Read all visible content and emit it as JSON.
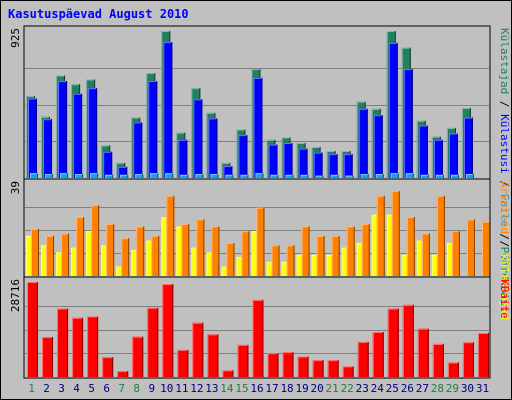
{
  "chart_data": {
    "type": "bar",
    "title": "Kasutuspäevad August 2010",
    "categories": [
      "1",
      "2",
      "3",
      "4",
      "5",
      "6",
      "7",
      "8",
      "9",
      "10",
      "11",
      "12",
      "13",
      "14",
      "15",
      "16",
      "17",
      "18",
      "19",
      "20",
      "21",
      "22",
      "23",
      "24",
      "25",
      "26",
      "27",
      "28",
      "29",
      "30",
      "31"
    ],
    "weekend_days": [
      "1",
      "7",
      "8",
      "14",
      "15",
      "21",
      "22",
      "28",
      "29"
    ],
    "category_colors": {
      "weekday": "#000080",
      "weekend": "#208040"
    },
    "panels": [
      {
        "id": "pages",
        "ymax": 925,
        "ymax_label": "925",
        "legend": [
          {
            "text": "Külastajad",
            "color": "#208060"
          },
          {
            "text": "Külastusi",
            "color": "#0000ff"
          },
          {
            "text": "Faile",
            "color": "#00aaff"
          },
          {
            "text": "Pöördumisi",
            "color": "#208060"
          }
        ],
        "legend_separator": "/",
        "series": [
          {
            "name": "Pöördumisi",
            "color": "#208060",
            "values": [
              515,
              385,
              645,
              590,
              620,
              205,
              95,
              380,
              660,
              925,
              285,
              565,
              410,
              95,
              305,
              685,
              240,
              255,
              220,
              195,
              170,
              170,
              480,
              435,
              925,
              820,
              360,
              260,
              315,
              440,
              0
            ]
          },
          {
            "name": "Faile",
            "color": "#0000ff",
            "values": [
              500,
              370,
              610,
              530,
              565,
              165,
              70,
              350,
              610,
              855,
              240,
              495,
              375,
              75,
              270,
              630,
              210,
              220,
              185,
              160,
              150,
              150,
              435,
              395,
              850,
              685,
              330,
              240,
              280,
              380,
              0
            ]
          },
          {
            "name": "Külastusi",
            "color": "#00aaff",
            "values": [
              30,
              25,
              30,
              25,
              30,
              20,
              20,
              25,
              30,
              30,
              20,
              25,
              25,
              20,
              20,
              30,
              20,
              20,
              20,
              15,
              20,
              15,
              25,
              25,
              30,
              30,
              20,
              20,
              20,
              25,
              0
            ]
          }
        ]
      },
      {
        "id": "visits",
        "ymax": 39,
        "ymax_label": "39",
        "legend": [
          {
            "text": "Arvuteid",
            "color": "#ff8000"
          },
          {
            "text": "Külastajad",
            "color": "#ffff00"
          }
        ],
        "legend_separator": "/",
        "series": [
          {
            "name": "Külastajad",
            "color": "#ffff00",
            "values": [
              17,
              13,
              10,
              12,
              19,
              13,
              4,
              11,
              15,
              25,
              21,
              12,
              10,
              4,
              8,
              19,
              6,
              6,
              9,
              9,
              9,
              12,
              14,
              26,
              26,
              9,
              15,
              9,
              14,
              0,
              0
            ]
          },
          {
            "name": "Arvuteid",
            "color": "#ff8000",
            "values": [
              20,
              17,
              18,
              25,
              30,
              22,
              16,
              21,
              17,
              34,
              22,
              24,
              21,
              14,
              19,
              29,
              13,
              13,
              21,
              17,
              17,
              21,
              22,
              34,
              36,
              25,
              18,
              34,
              19,
              24,
              23
            ]
          }
        ]
      },
      {
        "id": "kbytes",
        "ymax": 28716,
        "ymax_label": "28716",
        "legend": [
          {
            "text": "KBaite",
            "color": "#ff0000"
          }
        ],
        "legend_separator": "/",
        "series": [
          {
            "name": "KBaite",
            "color": "#ff0000",
            "values": [
              28716,
              12100,
              20700,
              17900,
              18300,
              6000,
              1800,
              12200,
              20900,
              28100,
              8200,
              16400,
              12900,
              2000,
              9700,
              23300,
              7200,
              7500,
              6200,
              5100,
              5100,
              3200,
              10600,
              13600,
              20700,
              21800,
              14600,
              10000,
              4400,
              10500,
              13300
            ]
          }
        ]
      }
    ]
  }
}
